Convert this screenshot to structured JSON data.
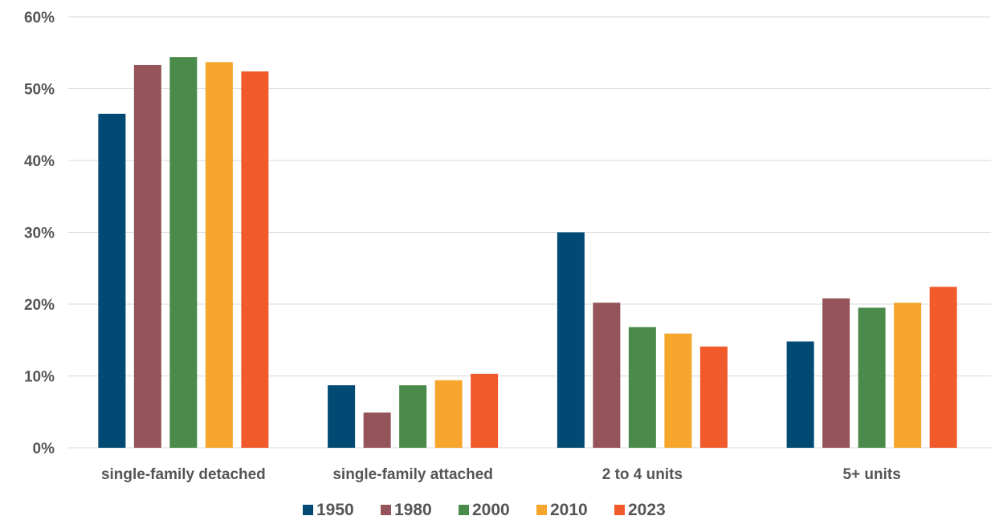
{
  "chart_data": {
    "type": "bar",
    "categories": [
      "single-family detached",
      "single-family attached",
      "2 to 4 units",
      "5+ units"
    ],
    "series": [
      {
        "name": "1950",
        "color": "#004a73",
        "values": [
          46.5,
          8.7,
          30.0,
          14.8
        ]
      },
      {
        "name": "1980",
        "color": "#94545a",
        "values": [
          53.3,
          4.9,
          20.2,
          20.8
        ]
      },
      {
        "name": "2000",
        "color": "#4a8a4a",
        "values": [
          54.4,
          8.7,
          16.8,
          19.5
        ]
      },
      {
        "name": "2010",
        "color": "#f6a62d",
        "values": [
          53.7,
          9.4,
          15.9,
          20.2
        ]
      },
      {
        "name": "2023",
        "color": "#f15a2b",
        "values": [
          52.4,
          10.3,
          14.1,
          22.4
        ]
      }
    ],
    "y_ticks": [
      "0%",
      "10%",
      "20%",
      "30%",
      "40%",
      "50%",
      "60%"
    ],
    "ylim": [
      0,
      60
    ],
    "grid": true,
    "legend_position": "bottom"
  }
}
